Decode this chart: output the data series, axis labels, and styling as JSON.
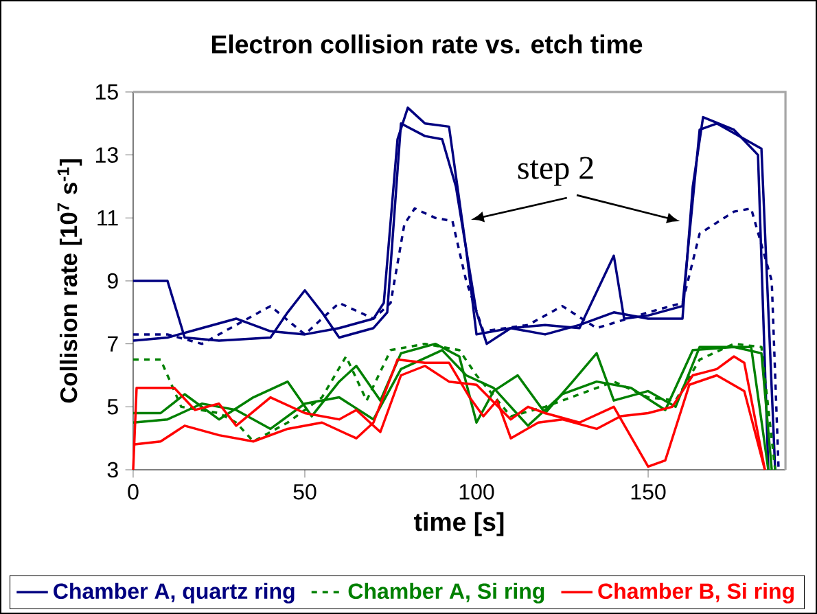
{
  "chart_data": {
    "type": "line",
    "title": "Electron collision rate vs. etch time",
    "xlabel": "time [s]",
    "ylabel": "Collision rate [10$^{7}$ s$^{-1}$]",
    "xlim": [
      0,
      190
    ],
    "ylim": [
      3,
      15
    ],
    "xticks": [
      0,
      50,
      100,
      150
    ],
    "yticks": [
      3,
      5,
      7,
      9,
      11,
      13,
      15
    ],
    "grid": false,
    "legend": "bottom",
    "marker": "none",
    "annotations": [
      "step 2"
    ],
    "series": [
      {
        "name": "Chamber A, quartz ring",
        "color": "#000080",
        "line_style": "solid",
        "x": [
          0,
          10,
          20,
          30,
          40,
          50,
          60,
          70,
          73,
          77,
          80,
          85,
          92,
          97,
          100,
          110,
          120,
          130,
          140,
          150,
          160,
          163,
          166,
          175,
          182,
          185
        ],
        "values": [
          7.1,
          7.2,
          7.5,
          7.8,
          7.4,
          7.3,
          7.5,
          7.8,
          8.3,
          13.5,
          14.5,
          14.0,
          13.9,
          10,
          7.3,
          7.5,
          7.3,
          7.6,
          8.0,
          7.8,
          7.8,
          12,
          14.2,
          13.8,
          13,
          3
        ]
      },
      {
        "color": "#000080",
        "line_style": "solid",
        "x": [
          0,
          10,
          15,
          25,
          40,
          45,
          50,
          55,
          60,
          70,
          74,
          78,
          85,
          90,
          94,
          100,
          103,
          110,
          120,
          130,
          140,
          143,
          150,
          160,
          165,
          170,
          183,
          187
        ],
        "values": [
          9.0,
          9.0,
          7.2,
          7.1,
          7.2,
          8.0,
          8.7,
          8.0,
          7.2,
          7.5,
          8,
          14,
          13.6,
          13.5,
          12,
          8,
          7.0,
          7.5,
          7.6,
          7.5,
          9.8,
          7.8,
          7.9,
          8.2,
          13.8,
          14.0,
          13.2,
          3
        ]
      },
      {
        "color": "#000080",
        "line_style": "dashed",
        "x": [
          0,
          10,
          20,
          30,
          40,
          50,
          60,
          70,
          75,
          79,
          82,
          88,
          93,
          97,
          102,
          115,
          125,
          135,
          150,
          160,
          165,
          175,
          180,
          186,
          188
        ],
        "values": [
          7.3,
          7.3,
          7.0,
          7.6,
          8.2,
          7.3,
          8.3,
          7.8,
          8.3,
          10.8,
          11.3,
          11.0,
          10.9,
          9,
          7.4,
          7.6,
          8.2,
          7.5,
          8.0,
          8.3,
          10.5,
          11.2,
          11.3,
          9,
          3
        ]
      },
      {
        "name": "Chamber A, Si ring",
        "color": "#008000",
        "line_style": "dashed",
        "x": [
          0,
          8,
          14,
          25,
          30,
          35,
          45,
          55,
          62,
          68,
          75,
          85,
          95,
          100,
          110,
          120,
          130,
          140,
          150,
          158,
          165,
          175,
          183,
          187
        ],
        "values": [
          6.5,
          6.5,
          5.0,
          4.8,
          4.5,
          3.9,
          4.5,
          5.3,
          6.6,
          5.2,
          6.8,
          7.0,
          6.8,
          6.0,
          4.7,
          5.0,
          5.4,
          5.8,
          5.3,
          5.2,
          6.5,
          7.0,
          6.9,
          3
        ]
      },
      {
        "color": "#008000",
        "line_style": "solid",
        "x": [
          0,
          8,
          15,
          25,
          35,
          45,
          52,
          60,
          65,
          72,
          78,
          88,
          95,
          100,
          105,
          112,
          120,
          128,
          135,
          140,
          150,
          158,
          165,
          180,
          185
        ],
        "values": [
          4.8,
          4.8,
          5.4,
          4.6,
          5.3,
          5.8,
          4.7,
          5.8,
          6.3,
          5.2,
          6.7,
          7.0,
          6.6,
          4.5,
          5.5,
          6.0,
          4.8,
          5.8,
          6.7,
          5.2,
          5.5,
          5.0,
          6.9,
          6.9,
          3
        ]
      },
      {
        "color": "#008000",
        "line_style": "solid",
        "x": [
          0,
          10,
          20,
          30,
          40,
          50,
          60,
          70,
          78,
          90,
          97,
          105,
          115,
          125,
          135,
          145,
          155,
          163,
          175,
          183,
          186
        ],
        "values": [
          4.5,
          4.6,
          5.1,
          4.9,
          4.3,
          5.1,
          5.3,
          4.6,
          6.2,
          6.8,
          6.0,
          5.6,
          4.4,
          5.4,
          5.8,
          5.6,
          4.9,
          6.8,
          6.9,
          6.7,
          3
        ]
      },
      {
        "name": "Chamber B, Si ring",
        "color": "#ff0000",
        "line_style": "solid",
        "x": [
          0,
          1,
          12,
          18,
          25,
          30,
          40,
          50,
          60,
          65,
          72,
          78,
          85,
          92,
          100,
          110,
          115,
          120,
          130,
          140,
          150,
          155,
          162,
          170,
          178,
          184
        ],
        "values": [
          3,
          5.6,
          5.6,
          4.9,
          5.1,
          4.4,
          5.3,
          4.8,
          4.6,
          4.9,
          4.2,
          6.0,
          6.3,
          5.8,
          5.7,
          4.6,
          5.0,
          4.8,
          4.5,
          5.0,
          3.1,
          3.3,
          5.7,
          6.0,
          5.5,
          3
        ]
      },
      {
        "color": "#ff0000",
        "line_style": "solid",
        "x": [
          0,
          8,
          15,
          25,
          35,
          45,
          55,
          65,
          70,
          77,
          85,
          92,
          98,
          102,
          106,
          110,
          118,
          125,
          135,
          142,
          150,
          157,
          163,
          170,
          175,
          178,
          184
        ],
        "values": [
          3.8,
          3.9,
          4.4,
          4.1,
          3.9,
          4.3,
          4.5,
          4.0,
          4.5,
          6.5,
          6.4,
          6.4,
          5.3,
          4.7,
          5.2,
          4.0,
          4.5,
          4.6,
          4.3,
          4.7,
          4.8,
          5.0,
          6.0,
          6.2,
          6.6,
          6.4,
          3
        ]
      }
    ]
  }
}
